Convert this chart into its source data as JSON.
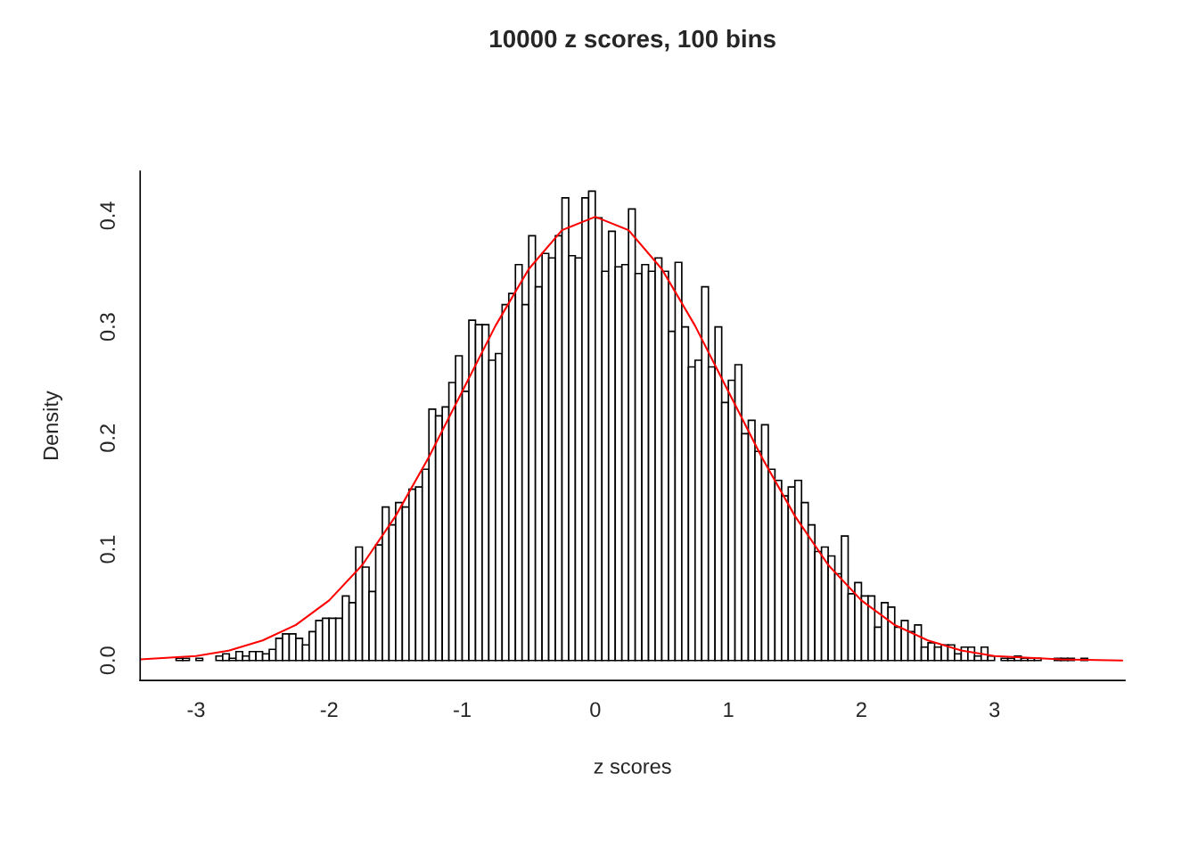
{
  "chart_data": {
    "type": "histogram",
    "title": "10000 z scores, 100 bins",
    "xlabel": "z scores",
    "ylabel": "Density",
    "bins": [
      -3.15,
      -3.1,
      -3.05,
      -3.0,
      -2.95,
      -2.9,
      -2.85,
      -2.8,
      -2.75,
      -2.7,
      -2.65,
      -2.6,
      -2.55,
      -2.5,
      -2.45,
      -2.4,
      -2.35,
      -2.3,
      -2.25,
      -2.2,
      -2.15,
      -2.1,
      -2.05,
      -2.0,
      -1.95,
      -1.9,
      -1.85,
      -1.8,
      -1.75,
      -1.7,
      -1.65,
      -1.6,
      -1.55,
      -1.5,
      -1.45,
      -1.4,
      -1.35,
      -1.3,
      -1.25,
      -1.2,
      -1.15,
      -1.1,
      -1.05,
      -1.0,
      -0.95,
      -0.9,
      -0.85,
      -0.8,
      -0.75,
      -0.7,
      -0.65,
      -0.6,
      -0.55,
      -0.5,
      -0.45,
      -0.4,
      -0.35,
      -0.3,
      -0.25,
      -0.2,
      -0.15,
      -0.1,
      -0.05,
      0.0,
      0.05,
      0.1,
      0.15,
      0.2,
      0.25,
      0.3,
      0.35,
      0.4,
      0.45,
      0.5,
      0.55,
      0.6,
      0.65,
      0.7,
      0.75,
      0.8,
      0.85,
      0.9,
      0.95,
      1.0,
      1.05,
      1.1,
      1.15,
      1.2,
      1.25,
      1.3,
      1.35,
      1.4,
      1.45,
      1.5,
      1.55,
      1.6,
      1.65,
      1.7,
      1.75,
      1.8,
      1.85,
      1.9,
      1.95,
      2.0,
      2.05,
      2.1,
      2.15,
      2.2,
      2.25,
      2.3,
      2.35,
      2.4,
      2.45,
      2.5,
      2.55,
      2.6,
      2.65,
      2.7,
      2.75,
      2.8,
      2.85,
      2.9,
      2.95,
      3.0,
      3.05,
      3.1,
      3.15,
      3.2,
      3.25,
      3.3,
      3.35,
      3.4,
      3.45,
      3.5,
      3.55,
      3.6,
      3.65,
      3.7
    ],
    "values": [
      0.002,
      0.002,
      0,
      0.002,
      0,
      0,
      0.004,
      0.006,
      0.002,
      0.008,
      0.004,
      0.008,
      0.008,
      0.006,
      0.01,
      0.02,
      0.024,
      0.024,
      0.02,
      0.014,
      0.026,
      0.036,
      0.038,
      0.038,
      0.038,
      0.058,
      0.052,
      0.102,
      0.084,
      0.062,
      0.104,
      0.138,
      0.122,
      0.142,
      0.138,
      0.154,
      0.156,
      0.172,
      0.226,
      0.22,
      0.228,
      0.25,
      0.274,
      0.242,
      0.306,
      0.302,
      0.302,
      0.27,
      0.276,
      0.32,
      0.33,
      0.356,
      0.32,
      0.382,
      0.336,
      0.366,
      0.362,
      0.382,
      0.416,
      0.364,
      0.362,
      0.416,
      0.422,
      0.398,
      0.35,
      0.386,
      0.354,
      0.356,
      0.406,
      0.348,
      0.356,
      0.35,
      0.362,
      0.35,
      0.296,
      0.358,
      0.3,
      0.264,
      0.27,
      0.336,
      0.264,
      0.3,
      0.232,
      0.252,
      0.266,
      0.204,
      0.216,
      0.188,
      0.212,
      0.172,
      0.162,
      0.148,
      0.156,
      0.162,
      0.142,
      0.122,
      0.098,
      0.102,
      0.094,
      0.078,
      0.112,
      0.06,
      0.07,
      0.058,
      0.058,
      0.03,
      0.052,
      0.048,
      0.03,
      0.036,
      0.026,
      0.032,
      0.012,
      0.016,
      0.012,
      0.014,
      0.014,
      0.006,
      0.012,
      0.012,
      0.004,
      0.012,
      0.004,
      0,
      0.002,
      0.002,
      0.004,
      0.002,
      0.002,
      0.002,
      0,
      0,
      0.002,
      0.002,
      0.002,
      0,
      0.002
    ],
    "color": "#ffffff",
    "series": [
      {
        "type": "line",
        "color": "#ff0000",
        "x": [
          -3.42,
          -3.0,
          -2.75,
          -2.5,
          -2.25,
          -2.0,
          -1.75,
          -1.5,
          -1.25,
          -1.0,
          -0.75,
          -0.5,
          -0.25,
          0.0,
          0.25,
          0.5,
          0.75,
          1.0,
          1.25,
          1.5,
          1.75,
          2.0,
          2.25,
          2.5,
          2.75,
          3.0,
          3.5,
          3.96
        ],
        "values": [
          0.001,
          0.004,
          0.009,
          0.018,
          0.032,
          0.054,
          0.086,
          0.13,
          0.183,
          0.242,
          0.301,
          0.352,
          0.387,
          0.399,
          0.387,
          0.352,
          0.301,
          0.242,
          0.183,
          0.13,
          0.086,
          0.054,
          0.032,
          0.018,
          0.009,
          0.004,
          0.001,
          0.0
        ]
      }
    ],
    "xlim": [
      -3.42,
      3.98
    ],
    "ylim": [
      -0.018,
      0.44
    ],
    "xticks": [
      -3,
      -2,
      -1,
      0,
      1,
      2,
      3
    ],
    "yticks": [
      {
        "value": 0,
        "label": "0.0"
      },
      {
        "value": 0.1,
        "label": "0.1"
      },
      {
        "value": 0.2,
        "label": "0.2"
      },
      {
        "value": 0.3,
        "label": "0.3"
      },
      {
        "value": 0.4,
        "label": "0.4"
      }
    ],
    "grid": false,
    "legend": false
  }
}
